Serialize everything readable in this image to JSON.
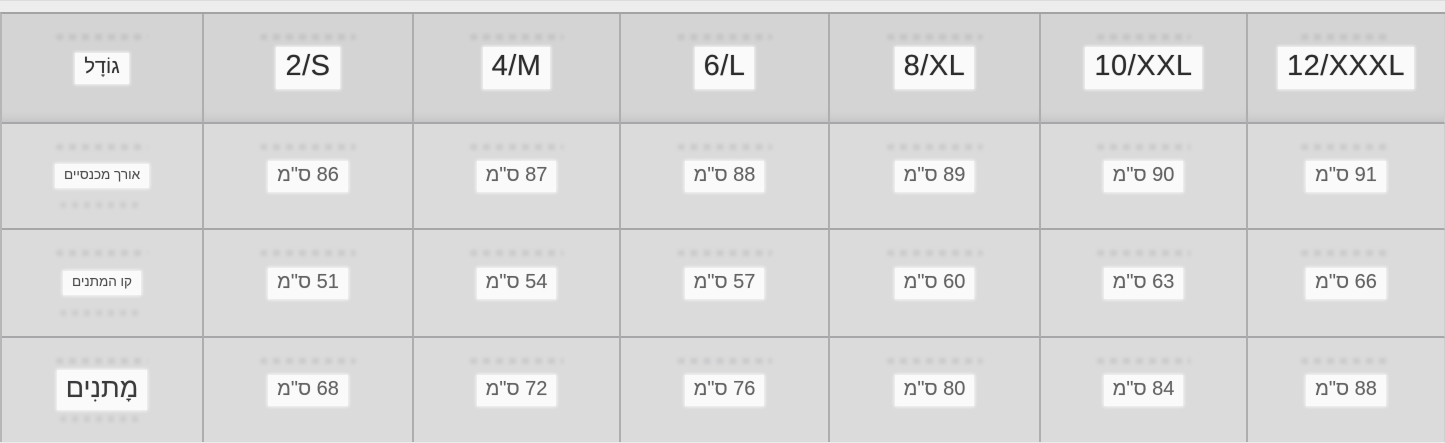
{
  "table": {
    "header": {
      "size_label": "גוֹדָל",
      "sizes": [
        "2/S",
        "4/M",
        "6/L",
        "8/XL",
        "10/XXL",
        "12/XXXL"
      ]
    },
    "rows": [
      {
        "label": "אורך מכנסיים",
        "values": [
          "86 ס\"מ",
          "87 ס\"מ",
          "88 ס\"מ",
          "89 ס\"מ",
          "90 ס\"מ",
          "91 ס\"מ"
        ]
      },
      {
        "label": "קו המתנים",
        "values": [
          "51 ס\"מ",
          "54 ס\"מ",
          "57 ס\"מ",
          "60 ס\"מ",
          "63 ס\"מ",
          "66 ס\"מ"
        ]
      },
      {
        "label": "מָתנִים",
        "values": [
          "68 ס\"מ",
          "72 ס\"מ",
          "76 ס\"מ",
          "80 ס\"מ",
          "84 ס\"מ",
          "88 ס\"מ"
        ]
      }
    ],
    "unit": "ס\"מ",
    "direction": "rtl-text-ltr-columns"
  },
  "colors": {
    "page_background": "#ededee",
    "header_cell_background": "#d4d4d5",
    "data_cell_background": "#dbdbdc",
    "grid_line": "#a7a7a9",
    "text_patch_background": "#fafafa",
    "header_text": "#2d2d2f",
    "value_text": "#646466"
  }
}
